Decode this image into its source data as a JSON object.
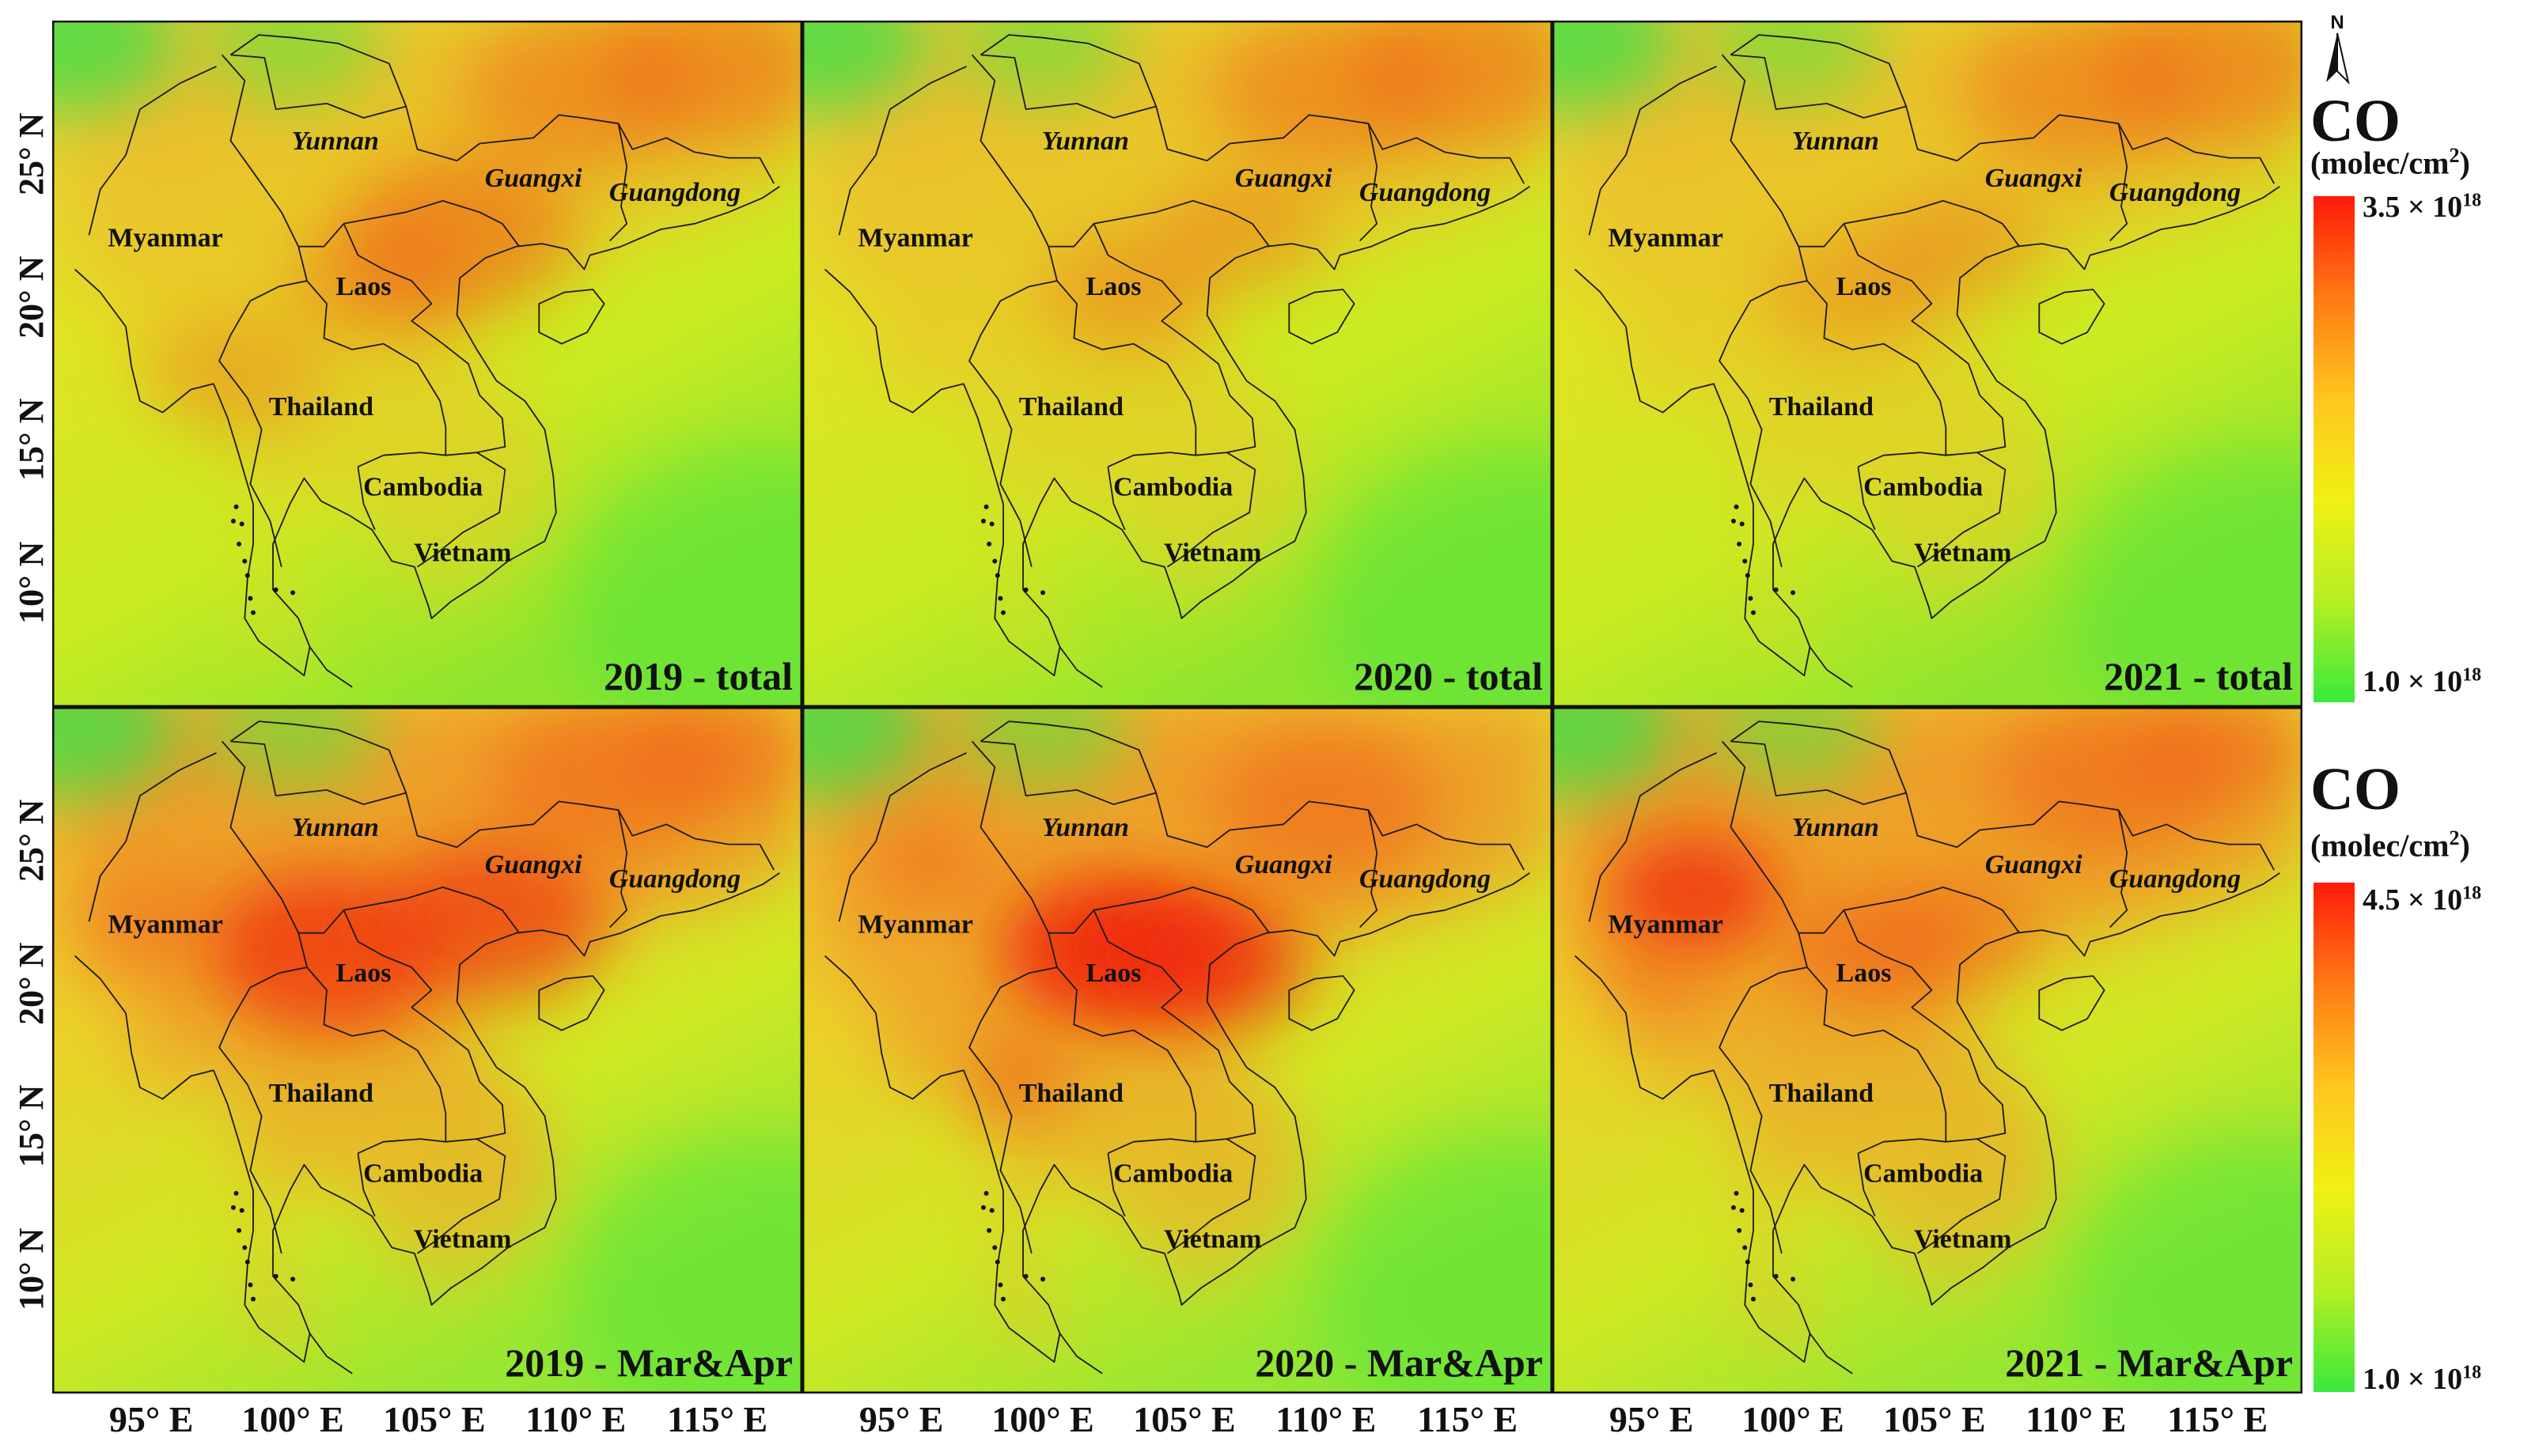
{
  "panels": [
    {
      "id": "2019-total",
      "label": "2019 - total",
      "season": "total",
      "year": 2019
    },
    {
      "id": "2020-total",
      "label": "2020 - total",
      "season": "total",
      "year": 2020
    },
    {
      "id": "2021-total",
      "label": "2021 - total",
      "season": "total",
      "year": 2021
    },
    {
      "id": "2019-marapr",
      "label": "2019 - Mar&Apr",
      "season": "marapr",
      "year": 2019
    },
    {
      "id": "2020-marapr",
      "label": "2020 - Mar&Apr",
      "season": "marapr",
      "year": 2020
    },
    {
      "id": "2021-marapr",
      "label": "2021 - Mar&Apr",
      "season": "marapr",
      "year": 2021
    }
  ],
  "region_labels": [
    {
      "name": "Yunnan",
      "italic": true,
      "lon": 101.5,
      "lat": 25.0
    },
    {
      "name": "Guangxi",
      "italic": true,
      "lon": 108.5,
      "lat": 23.7
    },
    {
      "name": "Guangdong",
      "italic": true,
      "lon": 113.5,
      "lat": 23.2
    },
    {
      "name": "Myanmar",
      "italic": false,
      "lon": 95.5,
      "lat": 21.6
    },
    {
      "name": "Laos",
      "italic": false,
      "lon": 102.5,
      "lat": 19.9
    },
    {
      "name": "Thailand",
      "italic": false,
      "lon": 101.0,
      "lat": 15.7
    },
    {
      "name": "Cambodia",
      "italic": false,
      "lon": 104.6,
      "lat": 12.9
    },
    {
      "name": "Vietnam",
      "italic": false,
      "lon": 106.0,
      "lat": 10.6
    }
  ],
  "lat_ticks": [
    "10° N",
    "15° N",
    "20° N",
    "25° N"
  ],
  "lat_tick_values": [
    10,
    15,
    20,
    25
  ],
  "lon_ticks": [
    "95° E",
    "100° E",
    "105° E",
    "110° E",
    "115° E"
  ],
  "lon_tick_values": [
    95,
    100,
    105,
    110,
    115
  ],
  "extent": {
    "lon_min": 91.5,
    "lon_max": 118.0,
    "lat_min": 5.5,
    "lat_max": 29.5
  },
  "north_arrow": {
    "letter": "N",
    "icon": "north-arrow-icon"
  },
  "legends": [
    {
      "title": "CO",
      "unit_base": "(molec/cm",
      "unit_sup": "2",
      "unit_end": ")",
      "max_base": "3.5 × 10",
      "max_exp": "18",
      "min_base": "1.0 × 10",
      "min_exp": "18",
      "max_value": 3.5e+18,
      "min_value": 1e+18,
      "colors": [
        "#ff1a0a",
        "#ff7a14",
        "#ffc61e",
        "#f0f014",
        "#b6ee24",
        "#38ea3a"
      ]
    },
    {
      "title": "CO",
      "unit_base": "(molec/cm",
      "unit_sup": "2",
      "unit_end": ")",
      "max_base": "4.5 × 10",
      "max_exp": "18",
      "min_base": "1.0 × 10",
      "min_exp": "18",
      "max_value": 4.5e+18,
      "min_value": 1e+18,
      "colors": [
        "#ff1a0a",
        "#ff7a14",
        "#ffc61e",
        "#f0f014",
        "#b6ee24",
        "#38ea3a"
      ]
    }
  ]
}
